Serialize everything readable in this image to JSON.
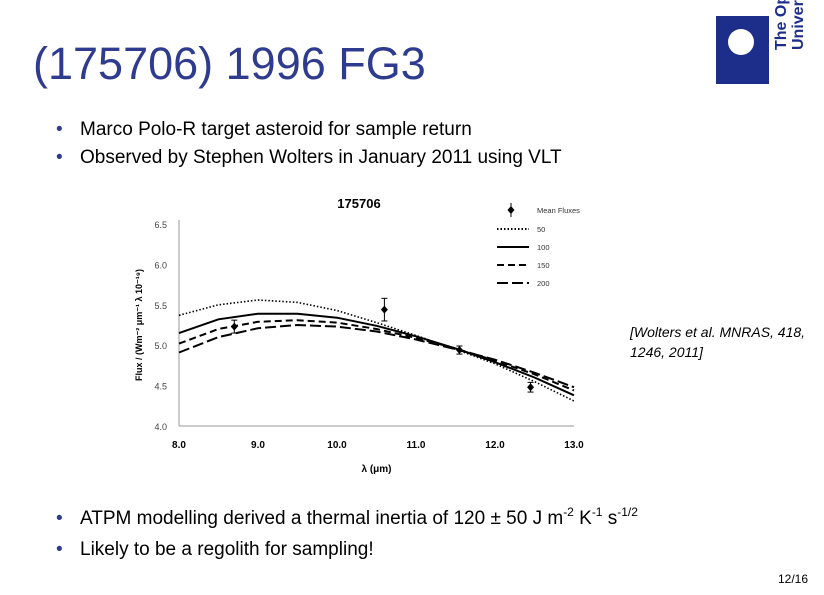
{
  "slide": {
    "title": "(175706) 1996 FG3",
    "logo": {
      "line1": "The Open",
      "line2": "University"
    },
    "bullets_top": [
      "Marco Polo-R target asteroid for sample return",
      "Observed by Stephen Wolters in January 2011 using VLT"
    ],
    "citation": "[Wolters et al. MNRAS, 418, 1246, 2011]",
    "bullet_bottom_1": {
      "text": "ATPM modelling derived a thermal inertia of 120 ± 50 J m",
      "exp1": "-2",
      "k": " K",
      "exp2": "-1",
      "s": " s",
      "exp3": "-1/2"
    },
    "bullet_bottom_2": "Likely to be a regolith for sampling!",
    "page_number": "12/16",
    "colors": {
      "title": "#2e3b8f",
      "logo": "#1c2d8a"
    }
  },
  "chart_data": {
    "type": "line",
    "title": "175706",
    "xlabel": "λ (μm)",
    "ylabel": "Flux / (Wm⁻² μm⁻¹ λ 10⁻¹⁹)",
    "xlim": [
      8.0,
      13.0
    ],
    "ylim": [
      4.0,
      6.5
    ],
    "xticks": [
      "8.0",
      "9.0",
      "10.0",
      "11.0",
      "12.0",
      "13.0"
    ],
    "yticks": [
      "4.0",
      "4.5",
      "5.0",
      "5.5",
      "6.0",
      "6.5"
    ],
    "legend_position": "top-right",
    "points": {
      "name": "Mean Fluxes",
      "x": [
        8.7,
        10.6,
        11.55,
        12.45
      ],
      "y": [
        5.23,
        5.44,
        4.94,
        4.48
      ],
      "err": [
        0.08,
        0.14,
        0.05,
        0.06
      ]
    },
    "series": [
      {
        "name": "50",
        "style": "dotted",
        "x": [
          8.0,
          8.5,
          9.0,
          9.5,
          10.0,
          10.5,
          11.0,
          11.5,
          12.0,
          12.5,
          13.0
        ],
        "y": [
          5.37,
          5.5,
          5.56,
          5.53,
          5.43,
          5.28,
          5.12,
          4.95,
          4.77,
          4.55,
          4.31
        ]
      },
      {
        "name": "100",
        "style": "solid",
        "x": [
          8.0,
          8.5,
          9.0,
          9.5,
          10.0,
          10.5,
          11.0,
          11.5,
          12.0,
          12.5,
          13.0
        ],
        "y": [
          5.15,
          5.32,
          5.39,
          5.39,
          5.34,
          5.24,
          5.11,
          4.96,
          4.79,
          4.6,
          4.38
        ]
      },
      {
        "name": "150",
        "style": "dashed",
        "x": [
          8.0,
          8.5,
          9.0,
          9.5,
          10.0,
          10.5,
          11.0,
          11.5,
          12.0,
          12.5,
          13.0
        ],
        "y": [
          5.02,
          5.2,
          5.29,
          5.31,
          5.28,
          5.2,
          5.09,
          4.96,
          4.81,
          4.64,
          4.44
        ]
      },
      {
        "name": "200",
        "style": "longdash",
        "x": [
          8.0,
          8.5,
          9.0,
          9.5,
          10.0,
          10.5,
          11.0,
          11.5,
          12.0,
          12.5,
          13.0
        ],
        "y": [
          4.91,
          5.1,
          5.21,
          5.25,
          5.23,
          5.17,
          5.07,
          4.95,
          4.82,
          4.66,
          4.48
        ]
      }
    ]
  }
}
